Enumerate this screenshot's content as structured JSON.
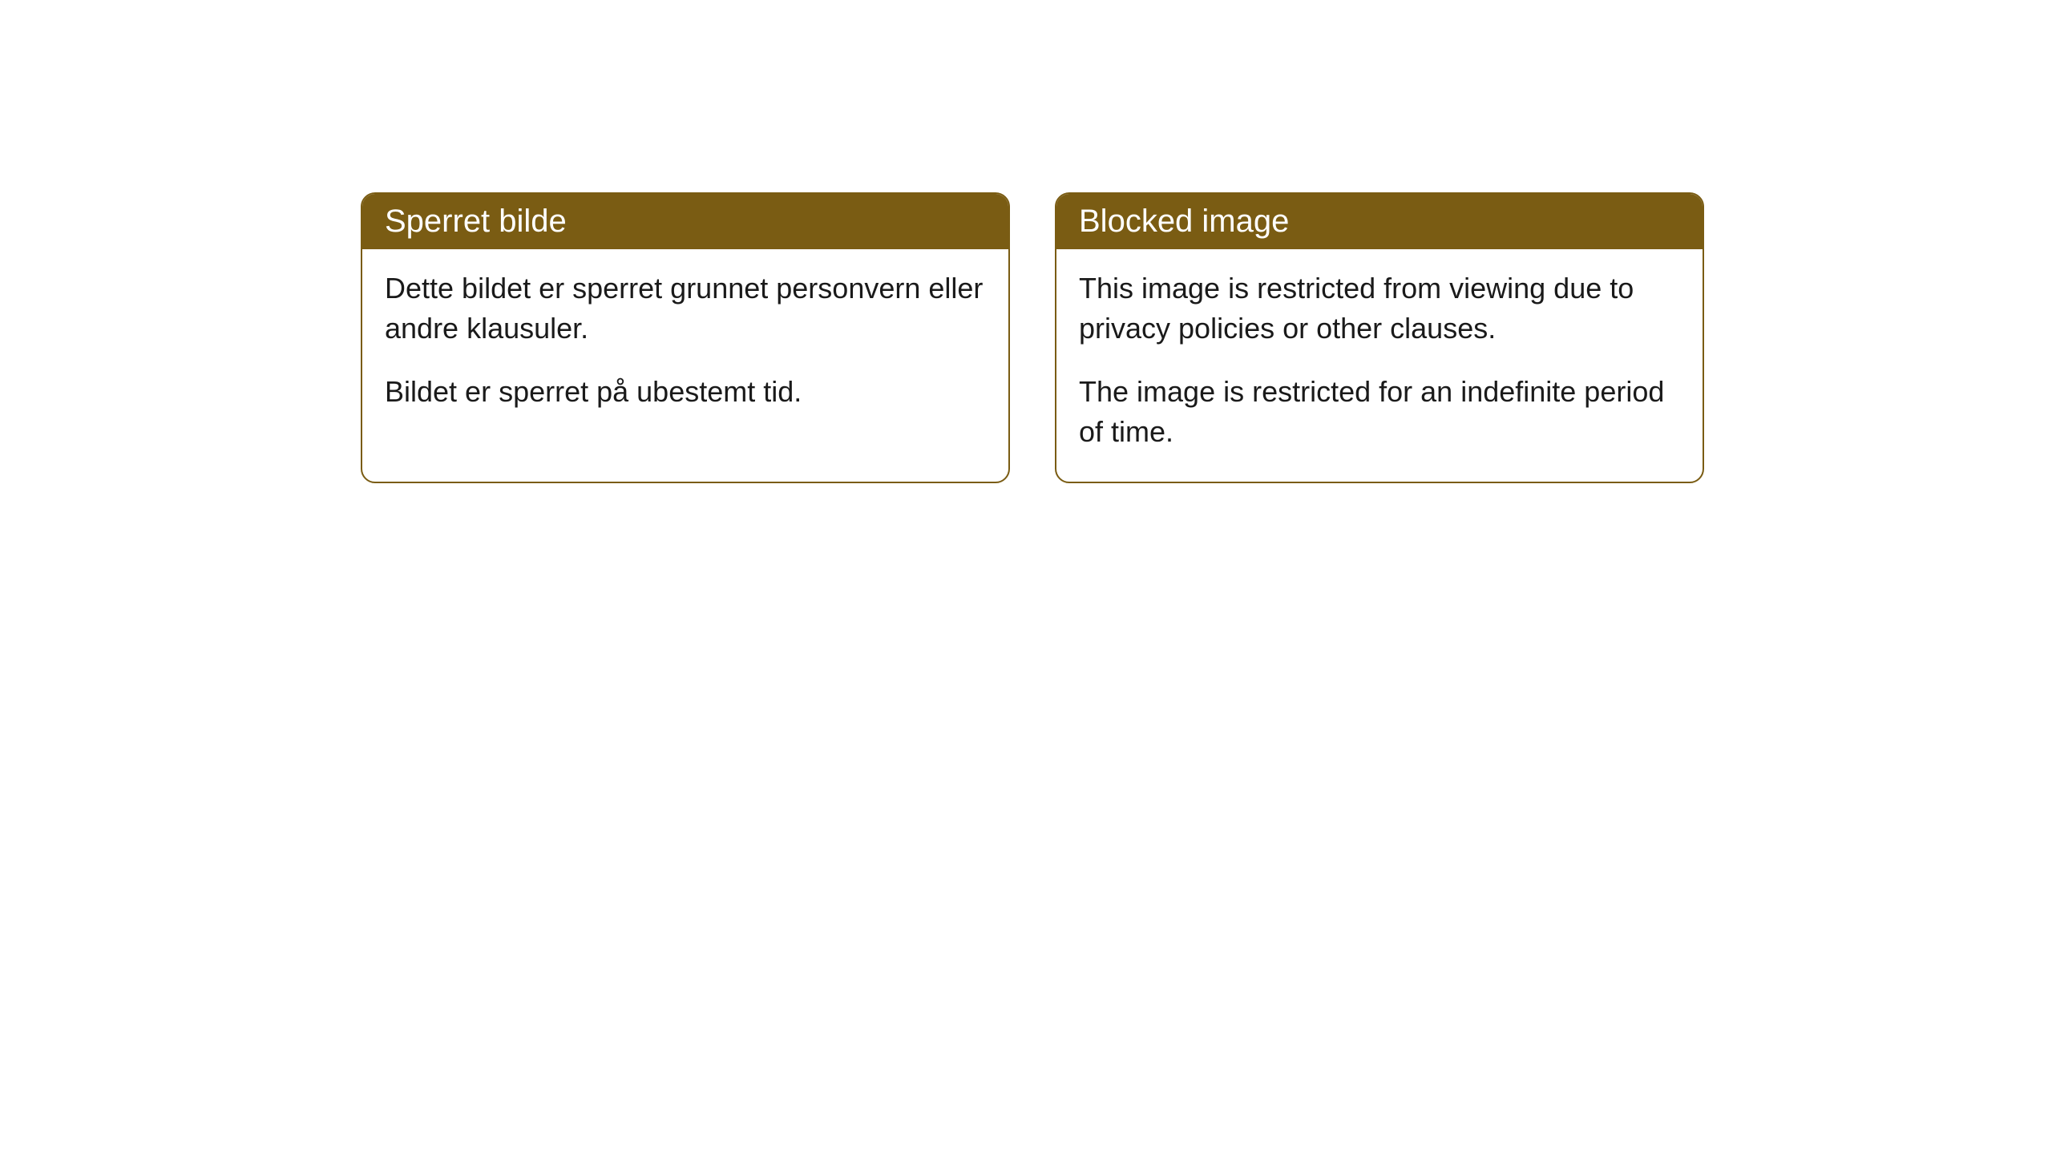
{
  "cards": [
    {
      "title": "Sperret bilde",
      "paragraph1": "Dette bildet er sperret grunnet personvern eller andre klausuler.",
      "paragraph2": "Bildet er sperret på ubestemt tid."
    },
    {
      "title": "Blocked image",
      "paragraph1": "This image is restricted from viewing due to privacy policies or other clauses.",
      "paragraph2": "The image is restricted for an indefinite period of time."
    }
  ],
  "styling": {
    "header_bg_color": "#7a5c13",
    "header_text_color": "#ffffff",
    "border_color": "#7a5c13",
    "body_bg_color": "#ffffff",
    "body_text_color": "#1a1a1a",
    "border_radius": 18,
    "title_fontsize": 40,
    "body_fontsize": 36
  }
}
